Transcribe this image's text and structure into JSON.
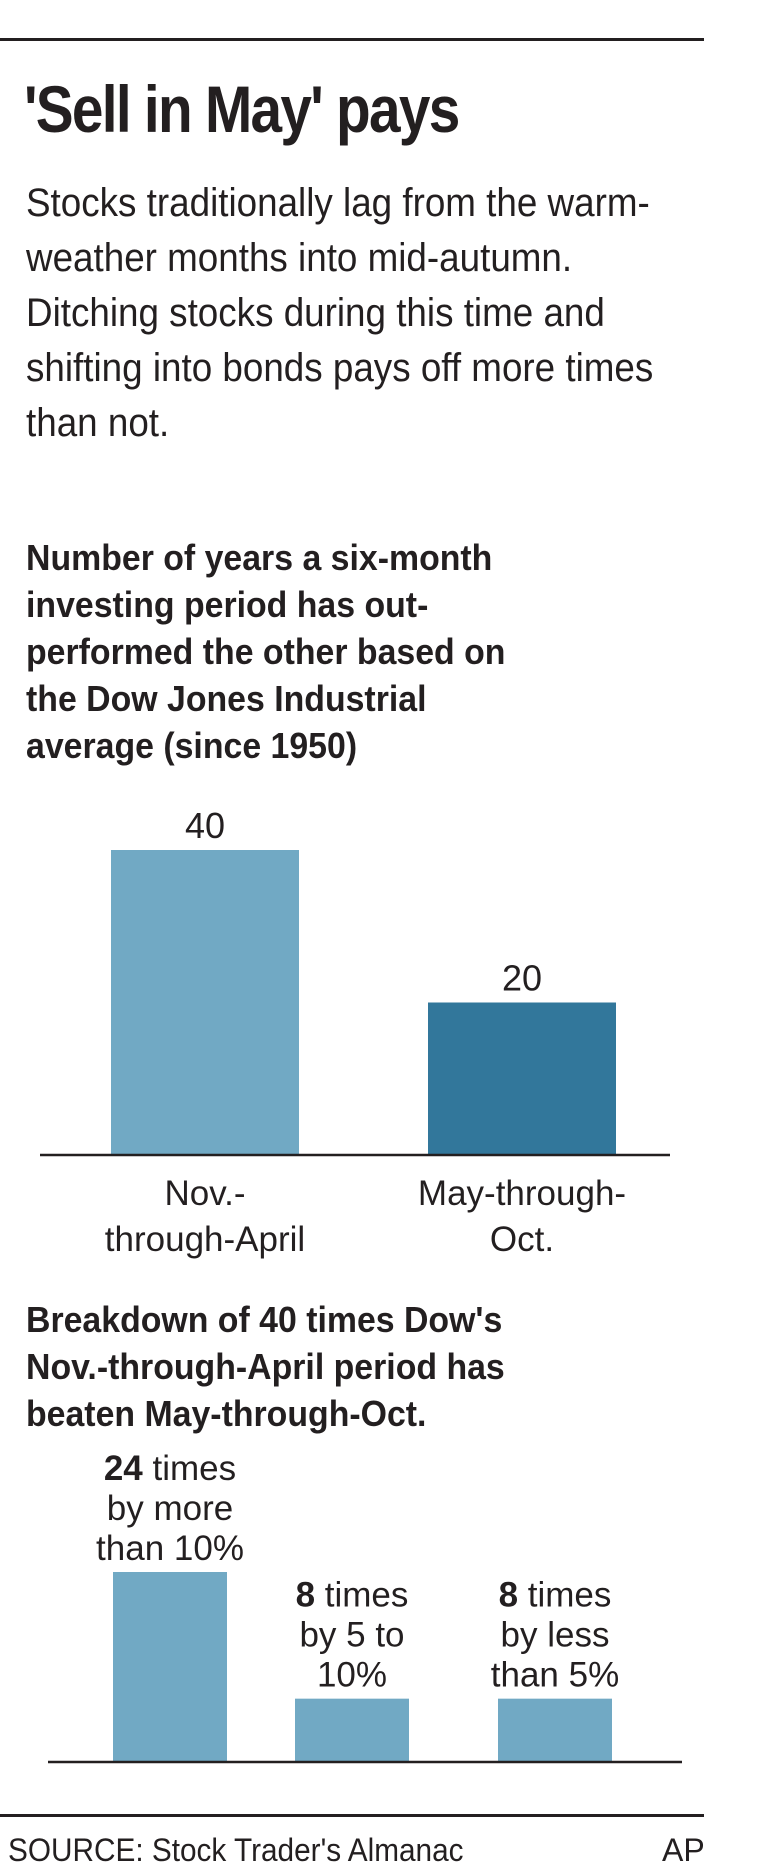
{
  "header": {
    "title": "'Sell in May' pays",
    "intro": "Stocks traditionally lag from the warm-weather months into mid-autumn. Ditching stocks during this time and shifting into bonds pays off more times than not."
  },
  "chart_data": [
    {
      "type": "bar",
      "title": "Number of years a six-month investing period has out-performed the other based on the Dow Jones Industrial average (since 1950)",
      "title_lines": [
        "Number of years a six-month",
        "investing period has out-",
        "performed the other based on",
        "the Dow Jones Industrial",
        "average (since 1950)"
      ],
      "categories": [
        "Nov.-through-April",
        "May-through-Oct."
      ],
      "category_lines": [
        [
          "Nov.-",
          "through-April"
        ],
        [
          "May-through-",
          "Oct."
        ]
      ],
      "values": [
        40,
        20
      ],
      "value_labels": [
        "40",
        "20"
      ],
      "colors": [
        "#71a9c4",
        "#32779b"
      ],
      "ylim": [
        0,
        40
      ],
      "grid": false,
      "xlabel": "",
      "ylabel": ""
    },
    {
      "type": "bar",
      "title": "Breakdown of 40 times Dow's Nov.-through-April period has beaten May-through-Oct.",
      "title_lines": [
        "Breakdown of 40 times Dow's",
        "Nov.-through-April period has",
        "beaten May-through-Oct."
      ],
      "categories": [
        "by more than 10%",
        "by 5 to 10%",
        "by less than 5%"
      ],
      "values": [
        24,
        8,
        8
      ],
      "label_lines": [
        [
          {
            "num": "24",
            "rest": " times"
          },
          {
            "num": "",
            "rest": "by more"
          },
          {
            "num": "",
            "rest": "than 10%"
          }
        ],
        [
          {
            "num": "8",
            "rest": " times"
          },
          {
            "num": "",
            "rest": "by 5 to"
          },
          {
            "num": "",
            "rest": "10%"
          }
        ],
        [
          {
            "num": "8",
            "rest": " times"
          },
          {
            "num": "",
            "rest": "by less"
          },
          {
            "num": "",
            "rest": "than 5%"
          }
        ]
      ],
      "colors": [
        "#71a9c4",
        "#71a9c4",
        "#71a9c4"
      ],
      "ylim": [
        0,
        24
      ],
      "grid": false,
      "xlabel": "",
      "ylabel": ""
    }
  ],
  "footer": {
    "source": "SOURCE: Stock Trader's Almanac",
    "credit": "AP"
  }
}
